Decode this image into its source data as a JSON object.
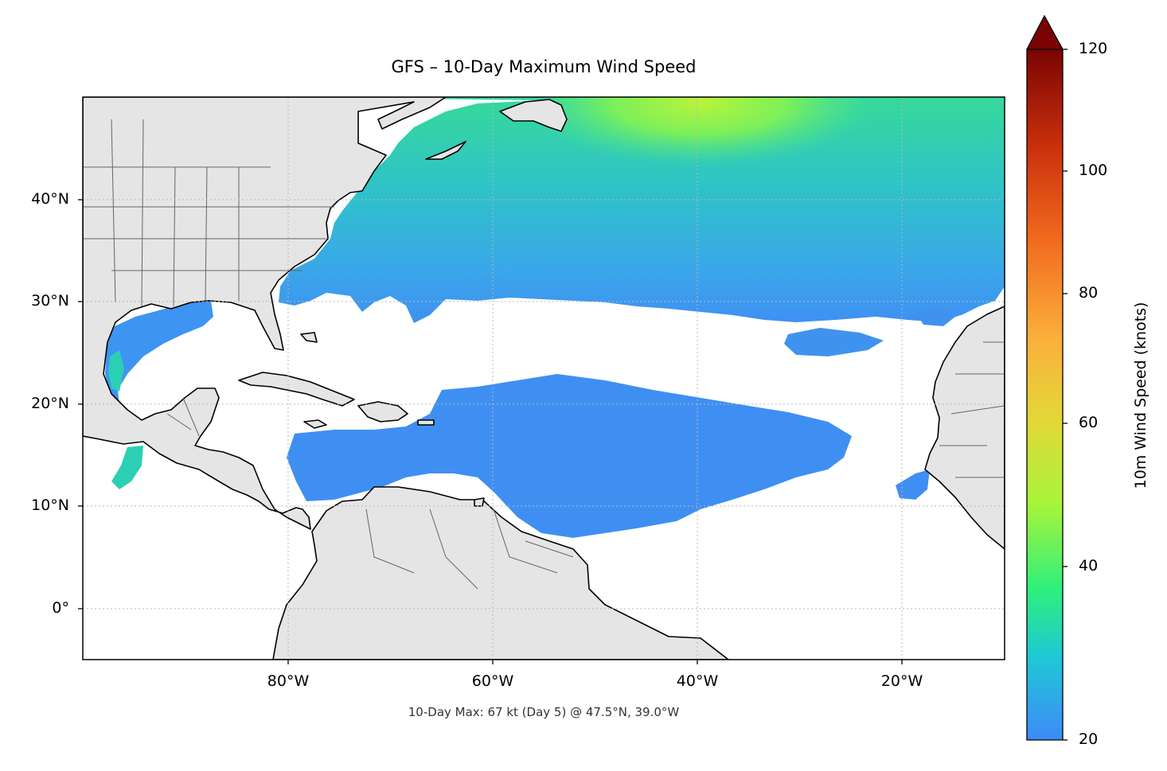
{
  "title": "GFS – 10-Day Maximum Wind Speed",
  "footer": "10-Day Max: 67 kt (Day 5) @ 47.5°N, 39.0°W",
  "map": {
    "lon_range": [
      -100,
      -10
    ],
    "lat_range": [
      -5,
      50
    ],
    "land_color": "#e5e5e5",
    "ocean_color": "#ffffff",
    "gridlines": "dotted",
    "lat_ticks": [
      "40°N",
      "30°N",
      "20°N",
      "10°N",
      "0°"
    ],
    "lon_ticks": [
      "80°W",
      "60°W",
      "40°W",
      "20°W"
    ]
  },
  "colorbar": {
    "label": "10m Wind Speed (knots)",
    "ticks": [
      "20",
      "40",
      "60",
      "80",
      "100",
      "120"
    ],
    "range": [
      20,
      120
    ],
    "extend": "max",
    "colormap": [
      "#3e8af7",
      "#1fc8d6",
      "#2ff07a",
      "#a6f43a",
      "#e2d838",
      "#fbb03b",
      "#f26c1f",
      "#c9300c",
      "#7a0403"
    ]
  }
}
